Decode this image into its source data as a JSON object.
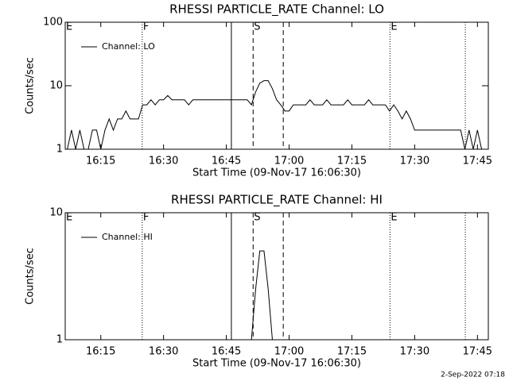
{
  "chart_data": [
    {
      "type": "line",
      "title": "RHESSI PARTICLE_RATE Channel: LO",
      "xlabel": "Start Time (09-Nov-17 16:06:30)",
      "ylabel": "Counts/sec",
      "xlim": [
        6.5,
        107.6
      ],
      "xticks": [
        {
          "value": 15,
          "label": "16:15"
        },
        {
          "value": 30,
          "label": "16:30"
        },
        {
          "value": 45,
          "label": "16:45"
        },
        {
          "value": 60,
          "label": "17:00"
        },
        {
          "value": 75,
          "label": "17:15"
        },
        {
          "value": 90,
          "label": "17:30"
        },
        {
          "value": 105,
          "label": "17:45"
        }
      ],
      "ylim": [
        1,
        100
      ],
      "yticks": [
        1,
        10,
        100
      ],
      "log_y": true,
      "series": [
        {
          "name": "Channel: LO",
          "color": "#000000",
          "x": [
            7,
            8,
            9,
            10,
            11,
            12,
            13,
            14,
            15,
            16,
            17,
            18,
            19,
            20,
            21,
            22,
            23,
            24,
            25,
            26,
            27,
            28,
            29,
            30,
            31,
            32,
            33,
            34,
            35,
            36,
            37,
            38,
            39,
            40,
            41,
            42,
            43,
            44,
            45,
            46,
            47,
            48,
            49,
            50,
            51,
            52,
            53,
            54,
            55,
            56,
            57,
            58,
            59,
            60,
            61,
            62,
            63,
            64,
            65,
            66,
            67,
            68,
            69,
            70,
            71,
            72,
            73,
            74,
            75,
            76,
            77,
            78,
            79,
            80,
            81,
            82,
            83,
            84,
            85,
            86,
            87,
            88,
            89,
            90,
            91,
            92,
            93,
            94,
            95,
            96,
            97,
            98,
            99,
            100,
            101,
            102,
            103,
            104,
            105,
            106,
            107
          ],
          "values": [
            1,
            2,
            1,
            2,
            1,
            1,
            2,
            2,
            1,
            2,
            3,
            2,
            3,
            3,
            4,
            3,
            3,
            3,
            5,
            5,
            6,
            5,
            6,
            6,
            7,
            6,
            6,
            6,
            6,
            5,
            6,
            6,
            6,
            6,
            6,
            6,
            6,
            6,
            6,
            6,
            6,
            6,
            6,
            6,
            5,
            8,
            11,
            12,
            12,
            9,
            6,
            5,
            4,
            4,
            5,
            5,
            5,
            5,
            6,
            5,
            5,
            5,
            6,
            5,
            5,
            5,
            5,
            6,
            5,
            5,
            5,
            5,
            6,
            5,
            5,
            5,
            5,
            4,
            5,
            4,
            3,
            4,
            3,
            2,
            2,
            2,
            2,
            2,
            2,
            2,
            2,
            2,
            2,
            2,
            2,
            1,
            2,
            1,
            2,
            1,
            1
          ]
        }
      ],
      "vlines": [
        {
          "x": 24.9,
          "style": "dotted"
        },
        {
          "x": 46.2,
          "style": "solid"
        },
        {
          "x": 51.4,
          "style": "dashed"
        },
        {
          "x": 58.6,
          "style": "dashed"
        },
        {
          "x": 84.1,
          "style": "dotted"
        },
        {
          "x": 102.1,
          "style": "dotted"
        }
      ],
      "annotations": [
        {
          "text": "E",
          "x": 6.5
        },
        {
          "text": "F",
          "x": 24.9
        },
        {
          "text": "S",
          "x": 51.4
        },
        {
          "text": "E",
          "x": 84.1
        }
      ]
    },
    {
      "type": "line",
      "title": "RHESSI PARTICLE_RATE Channel: HI",
      "xlabel": "Start Time (09-Nov-17 16:06:30)",
      "ylabel": "Counts/sec",
      "xlim": [
        6.5,
        107.6
      ],
      "xticks": [
        {
          "value": 15,
          "label": "16:15"
        },
        {
          "value": 30,
          "label": "16:30"
        },
        {
          "value": 45,
          "label": "16:45"
        },
        {
          "value": 60,
          "label": "17:00"
        },
        {
          "value": 75,
          "label": "17:15"
        },
        {
          "value": 90,
          "label": "17:30"
        },
        {
          "value": 105,
          "label": "17:45"
        }
      ],
      "ylim": [
        1,
        10
      ],
      "yticks": [
        1,
        10
      ],
      "log_y": true,
      "series": [
        {
          "name": "Channel: HI",
          "color": "#000000",
          "x": [
            51,
            52,
            53,
            54,
            55,
            56
          ],
          "values": [
            1,
            2.5,
            5,
            5,
            2.5,
            1
          ]
        }
      ],
      "vlines": [
        {
          "x": 24.9,
          "style": "dotted"
        },
        {
          "x": 46.2,
          "style": "solid"
        },
        {
          "x": 51.4,
          "style": "dashed"
        },
        {
          "x": 58.6,
          "style": "dashed"
        },
        {
          "x": 84.1,
          "style": "dotted"
        },
        {
          "x": 102.1,
          "style": "dotted"
        }
      ],
      "annotations": [
        {
          "text": "E",
          "x": 6.5
        },
        {
          "text": "F",
          "x": 24.9
        },
        {
          "text": "S",
          "x": 51.4
        },
        {
          "text": "E",
          "x": 84.1
        }
      ]
    }
  ],
  "footer": "2-Sep-2022 07:18"
}
